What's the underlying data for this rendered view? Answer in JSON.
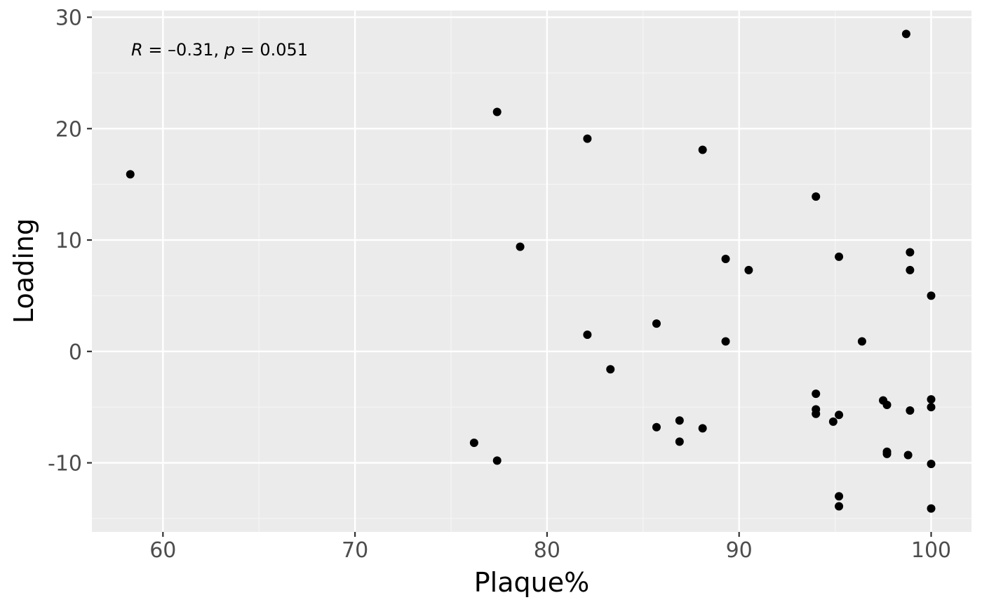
{
  "chart_data": {
    "type": "scatter",
    "xlabel": "Plaque%",
    "ylabel": "Loading",
    "xlim": [
      56.3,
      102.1
    ],
    "ylim": [
      -16.2,
      30.6
    ],
    "x_ticks": [
      60,
      70,
      80,
      90,
      100
    ],
    "y_ticks": [
      -10,
      0,
      10,
      20,
      30
    ],
    "x_tick_labels": [
      "60",
      "70",
      "80",
      "90",
      "100"
    ],
    "y_tick_labels": [
      "-10",
      "0",
      "10",
      "20",
      "30"
    ],
    "grid": true,
    "annotation": {
      "text": "R = –0.31, p = 0.051",
      "parts": [
        {
          "text": "R",
          "italic": true
        },
        {
          "text": " = –0.31, ",
          "italic": false
        },
        {
          "text": "p",
          "italic": true
        },
        {
          "text": " = 0.051",
          "italic": false
        }
      ]
    },
    "points": [
      {
        "x": 58.3,
        "y": 15.9
      },
      {
        "x": 76.2,
        "y": -8.2
      },
      {
        "x": 77.4,
        "y": 21.5
      },
      {
        "x": 77.4,
        "y": -9.8
      },
      {
        "x": 78.6,
        "y": 9.4
      },
      {
        "x": 82.1,
        "y": 19.1
      },
      {
        "x": 82.1,
        "y": 1.5
      },
      {
        "x": 83.3,
        "y": -1.6
      },
      {
        "x": 85.7,
        "y": 2.5
      },
      {
        "x": 85.7,
        "y": -6.8
      },
      {
        "x": 86.9,
        "y": -6.2
      },
      {
        "x": 86.9,
        "y": -8.1
      },
      {
        "x": 88.1,
        "y": 18.1
      },
      {
        "x": 88.1,
        "y": -6.9
      },
      {
        "x": 89.3,
        "y": 8.3
      },
      {
        "x": 89.3,
        "y": 0.9
      },
      {
        "x": 90.5,
        "y": 7.3
      },
      {
        "x": 94.0,
        "y": 13.9
      },
      {
        "x": 94.0,
        "y": -3.8
      },
      {
        "x": 94.0,
        "y": -5.2
      },
      {
        "x": 94.0,
        "y": -5.6
      },
      {
        "x": 94.9,
        "y": -6.3
      },
      {
        "x": 95.2,
        "y": 8.5
      },
      {
        "x": 95.2,
        "y": -5.7
      },
      {
        "x": 95.2,
        "y": -13.0
      },
      {
        "x": 95.2,
        "y": -13.9
      },
      {
        "x": 96.4,
        "y": 0.9
      },
      {
        "x": 97.5,
        "y": -4.4
      },
      {
        "x": 97.7,
        "y": -4.8
      },
      {
        "x": 97.7,
        "y": -9.0
      },
      {
        "x": 97.7,
        "y": -9.2
      },
      {
        "x": 98.7,
        "y": 28.5
      },
      {
        "x": 98.8,
        "y": -9.3
      },
      {
        "x": 98.9,
        "y": 8.9
      },
      {
        "x": 98.9,
        "y": 7.3
      },
      {
        "x": 98.9,
        "y": -5.3
      },
      {
        "x": 100.0,
        "y": 5.0
      },
      {
        "x": 100.0,
        "y": -4.3
      },
      {
        "x": 100.0,
        "y": -5.0
      },
      {
        "x": 100.0,
        "y": -10.1
      },
      {
        "x": 100.0,
        "y": -14.1
      }
    ],
    "colors": {
      "panel_background": "#ebebeb",
      "grid_major": "#ffffff",
      "grid_minor": "#f5f5f5",
      "point": "#000000",
      "tick": "#333333"
    }
  }
}
